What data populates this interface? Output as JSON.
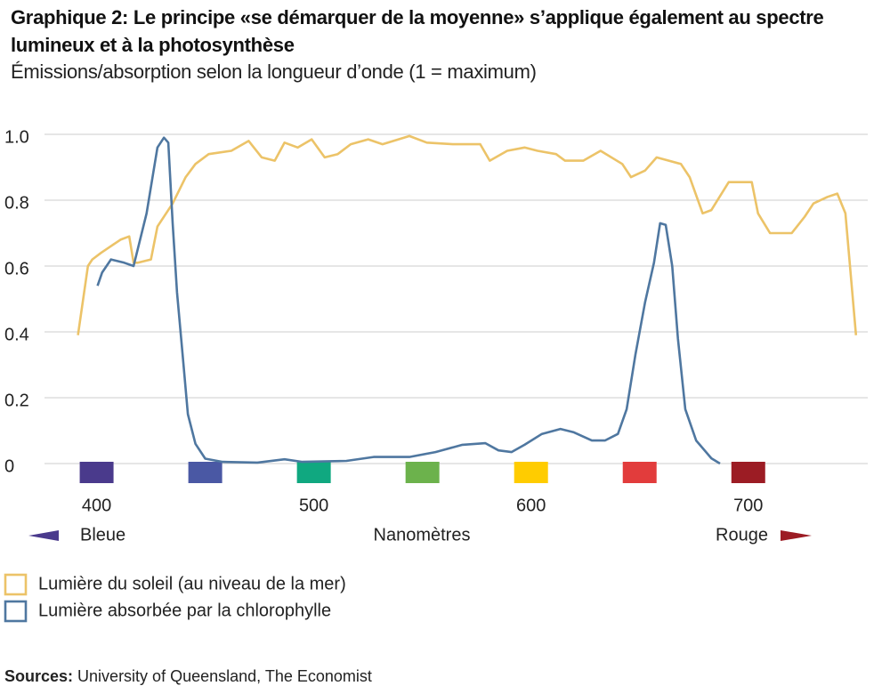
{
  "chart_data": {
    "type": "line",
    "title": "Graphique 2: Le principe «se démarquer de la moyenne» s’applique également au spectre lumineux et à la photosynthèse",
    "subtitle": "Émissions/absorption selon la longueur d’onde (1 = maximum)",
    "xlim": [
      376,
      755
    ],
    "ylim": [
      0,
      1
    ],
    "xticks": [
      400,
      500,
      600,
      700
    ],
    "yticks": [
      0,
      0.2,
      0.4,
      0.6,
      0.8,
      {
        "value": 1,
        "label": "1.0"
      }
    ],
    "grid": true,
    "axis_notes": {
      "left": "Bleue",
      "center": "Nanomètres",
      "right": "Rouge"
    },
    "spectrum_swatches": [
      {
        "x": 400,
        "color": "#4a3a8c"
      },
      {
        "x": 450,
        "color": "#4a58a4"
      },
      {
        "x": 500,
        "color": "#10a880"
      },
      {
        "x": 550,
        "color": "#6cb24c"
      },
      {
        "x": 600,
        "color": "#ffcc00"
      },
      {
        "x": 650,
        "color": "#e23c3c"
      },
      {
        "x": 700,
        "color": "#9c1c24"
      }
    ],
    "series": [
      {
        "name": "Lumière du soleil (au niveau de la mer)",
        "color": "#ecc368",
        "x": [
          391.4,
          396,
          398,
          402,
          406.5,
          411,
          415,
          417,
          419,
          425,
          428,
          435,
          441,
          445.5,
          451.6,
          462,
          470,
          476,
          482,
          486.5,
          492.6,
          499,
          505,
          511,
          517,
          525,
          531.6,
          544,
          552,
          564,
          576.6,
          581,
          589,
          597,
          603,
          611.5,
          615.6,
          624,
          632,
          642,
          646,
          652.5,
          657.8,
          669,
          673,
          679,
          683,
          691,
          701.6,
          704.5,
          710,
          720,
          726,
          730,
          736.5,
          741,
          744.7,
          749.6
        ],
        "values": [
          0.39,
          0.6,
          0.62,
          0.64,
          0.66,
          0.68,
          0.69,
          0.61,
          0.61,
          0.62,
          0.72,
          0.79,
          0.87,
          0.91,
          0.94,
          0.95,
          0.98,
          0.93,
          0.92,
          0.975,
          0.96,
          0.985,
          0.93,
          0.94,
          0.97,
          0.985,
          0.97,
          0.995,
          0.975,
          0.97,
          0.97,
          0.92,
          0.95,
          0.96,
          0.95,
          0.94,
          0.92,
          0.92,
          0.95,
          0.91,
          0.87,
          0.89,
          0.93,
          0.91,
          0.87,
          0.76,
          0.77,
          0.855,
          0.855,
          0.76,
          0.7,
          0.7,
          0.75,
          0.79,
          0.81,
          0.82,
          0.76,
          0.39
        ]
      },
      {
        "name": "Lumière absorbée par la chlorophylle",
        "color": "#4f77a0",
        "x": [
          400.4,
          402.5,
          406.6,
          412.7,
          417,
          423,
          426,
          428,
          431,
          433,
          435,
          437,
          440,
          442,
          445.5,
          450,
          458,
          474,
          486.5,
          494.7,
          515,
          527.5,
          544,
          556,
          568.4,
          579,
          585,
          591,
          597,
          605,
          613.5,
          619.7,
          628,
          634,
          640,
          644,
          648,
          652.5,
          656.6,
          659.4,
          662,
          665,
          667.6,
          671,
          676,
          683,
          687
        ],
        "values": [
          0.54,
          0.58,
          0.62,
          0.61,
          0.6,
          0.76,
          0.88,
          0.96,
          0.99,
          0.975,
          0.73,
          0.52,
          0.3,
          0.15,
          0.06,
          0.015,
          0.005,
          0.003,
          0.013,
          0.005,
          0.008,
          0.02,
          0.02,
          0.035,
          0.057,
          0.062,
          0.04,
          0.035,
          0.057,
          0.09,
          0.105,
          0.095,
          0.07,
          0.07,
          0.09,
          0.165,
          0.33,
          0.49,
          0.61,
          0.73,
          0.725,
          0.6,
          0.38,
          0.165,
          0.07,
          0.016,
          0
        ]
      }
    ],
    "source": {
      "label": "Sources:",
      "text": "University of Queensland, The Economist"
    }
  }
}
